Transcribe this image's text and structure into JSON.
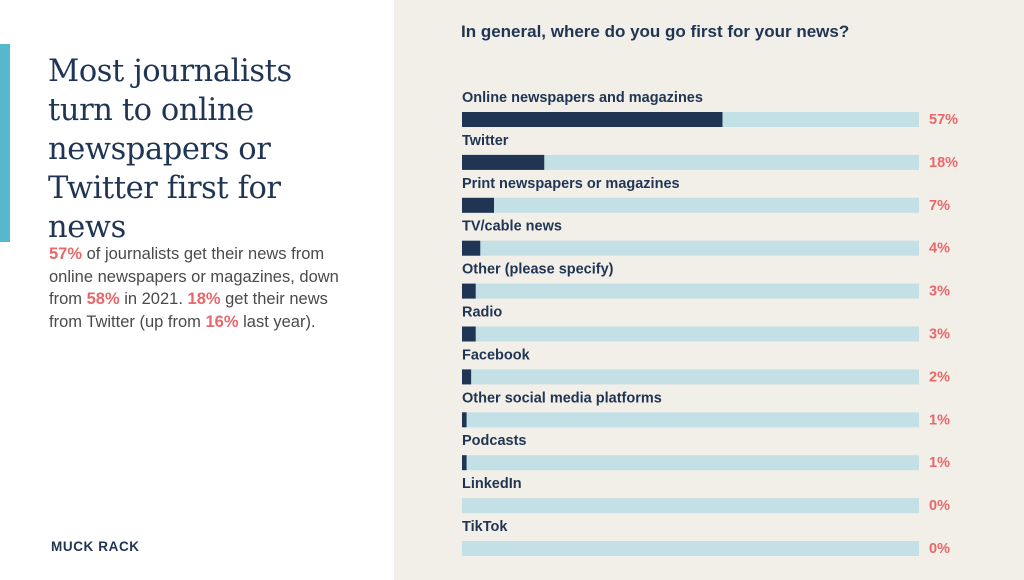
{
  "headline": "Most journalists turn to online newspapers or Twitter first for news",
  "body": {
    "p1": "57%",
    "t1": " of journalists get their news from online newspapers or magazines, down from ",
    "p2": "58%",
    "t2": " in 2021. ",
    "p3": "18%",
    "t3": " get their news from Twitter (up from ",
    "p4": "16%",
    "t4": " last year)."
  },
  "brand": "MUCK RACK",
  "colors": {
    "navy": "#1f3553",
    "bar_track": "#c4e0e7",
    "highlight": "#e8686a",
    "accent": "#55b8cc",
    "panel_bg": "#f2eee8"
  },
  "chart_data": {
    "type": "bar",
    "orientation": "horizontal",
    "title": "In general, where do you go first for your news?",
    "categories": [
      "Online newspapers and magazines",
      "Twitter",
      "Print newspapers or magazines",
      "TV/cable news",
      "Other (please specify)",
      "Radio",
      "Facebook",
      "Other social media platforms",
      "Podcasts",
      "LinkedIn",
      "TikTok"
    ],
    "values": [
      57,
      18,
      7,
      4,
      3,
      3,
      2,
      1,
      1,
      0,
      0
    ],
    "value_labels": [
      "57%",
      "18%",
      "7%",
      "4%",
      "3%",
      "3%",
      "2%",
      "1%",
      "1%",
      "0%",
      "0%"
    ],
    "xlim": [
      0,
      100
    ],
    "unit": "%",
    "grid": false,
    "legend": "none"
  }
}
